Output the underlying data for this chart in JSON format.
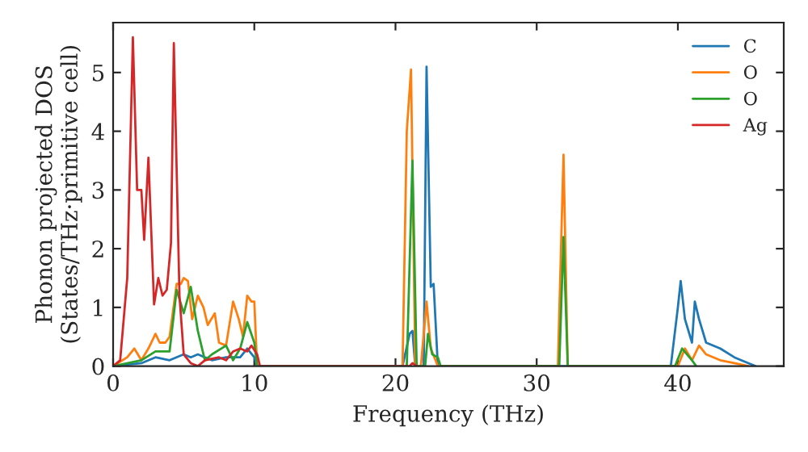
{
  "chart_data": {
    "type": "line",
    "xlabel": "Frequency (THz)",
    "ylabel": "Phonon projected DOS\n(States/THz·primitive cell)",
    "xlim": [
      0,
      47.5
    ],
    "ylim": [
      0,
      5.85
    ],
    "xticks": [
      0,
      10,
      20,
      30,
      40
    ],
    "yticks": [
      0,
      1,
      2,
      3,
      4,
      5
    ],
    "grid": false,
    "legend": "top right",
    "series": [
      {
        "name": "C",
        "color": "#1f77b4",
        "x": [
          0,
          2,
          3,
          4,
          5,
          5.5,
          6,
          7,
          8,
          9,
          9.5,
          10,
          10.2,
          20.5,
          21,
          21.2,
          21.4,
          22.0,
          22.2,
          22.5,
          22.7,
          23,
          39.5,
          40,
          40.2,
          40.5,
          41,
          41.2,
          41.5,
          42,
          43,
          44,
          45,
          45.5
        ],
        "values": [
          0,
          0.05,
          0.15,
          0.1,
          0.2,
          0.15,
          0.2,
          0.1,
          0.15,
          0.15,
          0.3,
          0.15,
          0,
          0,
          0.55,
          0.6,
          0,
          0,
          5.1,
          1.35,
          1.4,
          0,
          0,
          1.0,
          1.45,
          0.8,
          0.4,
          1.1,
          0.8,
          0.4,
          0.3,
          0.15,
          0.05,
          0
        ]
      },
      {
        "name": "O",
        "color": "#ff7f0e",
        "x": [
          0,
          1,
          1.5,
          2,
          2.5,
          3,
          3.3,
          3.7,
          4,
          4.5,
          4.8,
          5,
          5.3,
          5.6,
          6,
          6.4,
          6.7,
          7.2,
          7.5,
          8,
          8.5,
          8.9,
          9.2,
          9.5,
          9.8,
          10,
          10.2,
          20.5,
          20.8,
          21.1,
          21.4,
          21.8,
          22.2,
          22.5,
          23,
          31.5,
          31.9,
          32.2,
          40,
          40.5,
          41,
          41.5,
          42,
          43,
          44,
          45
        ],
        "values": [
          0,
          0.15,
          0.3,
          0.1,
          0.3,
          0.55,
          0.4,
          0.4,
          0.5,
          1.4,
          1.4,
          1.5,
          1.45,
          0.8,
          1.2,
          1.0,
          0.7,
          0.9,
          0.4,
          0.35,
          1.1,
          0.8,
          0.5,
          1.2,
          1.1,
          1.1,
          0,
          0,
          4.0,
          5.05,
          0,
          0,
          1.1,
          0.3,
          0,
          0,
          3.6,
          0,
          0,
          0.3,
          0.1,
          0.35,
          0.2,
          0.1,
          0.05,
          0
        ]
      },
      {
        "name": "O",
        "color": "#2ca02c",
        "x": [
          0,
          2,
          3,
          4,
          4.5,
          5,
          5.5,
          6,
          6.5,
          7,
          8,
          8.5,
          9,
          9.5,
          10,
          10.2,
          20.8,
          21.2,
          21.5,
          22.1,
          22.3,
          22.6,
          23,
          23.2,
          31.6,
          31.9,
          32.2,
          39.8,
          40.3,
          41,
          41.3
        ],
        "values": [
          0,
          0.1,
          0.25,
          0.25,
          1.3,
          0.9,
          1.35,
          0.6,
          0.1,
          0.2,
          0.35,
          0.1,
          0.3,
          0.75,
          0.4,
          0,
          0,
          3.5,
          0,
          0,
          0.55,
          0.2,
          0.15,
          0,
          0,
          2.2,
          0,
          0,
          0.3,
          0.1,
          0
        ]
      },
      {
        "name": "Ag",
        "color": "#d62728",
        "x": [
          0,
          0.5,
          1,
          1.4,
          1.7,
          2.0,
          2.2,
          2.5,
          2.9,
          3.2,
          3.5,
          3.8,
          4.1,
          4.3,
          4.7,
          5.0,
          5.5,
          6,
          6.5,
          7.5,
          8,
          8.5,
          9,
          9.5,
          9.8,
          10.2,
          10.4,
          21,
          21.2,
          21.5
        ],
        "values": [
          0,
          0.1,
          1.5,
          5.6,
          3.0,
          3.0,
          2.15,
          3.55,
          1.05,
          1.5,
          1.2,
          1.3,
          2.1,
          5.5,
          1.2,
          0.2,
          0.05,
          0,
          0.1,
          0.15,
          0.1,
          0.25,
          0.3,
          0.25,
          0.35,
          0.2,
          0,
          0,
          0.05,
          0
        ]
      }
    ]
  }
}
